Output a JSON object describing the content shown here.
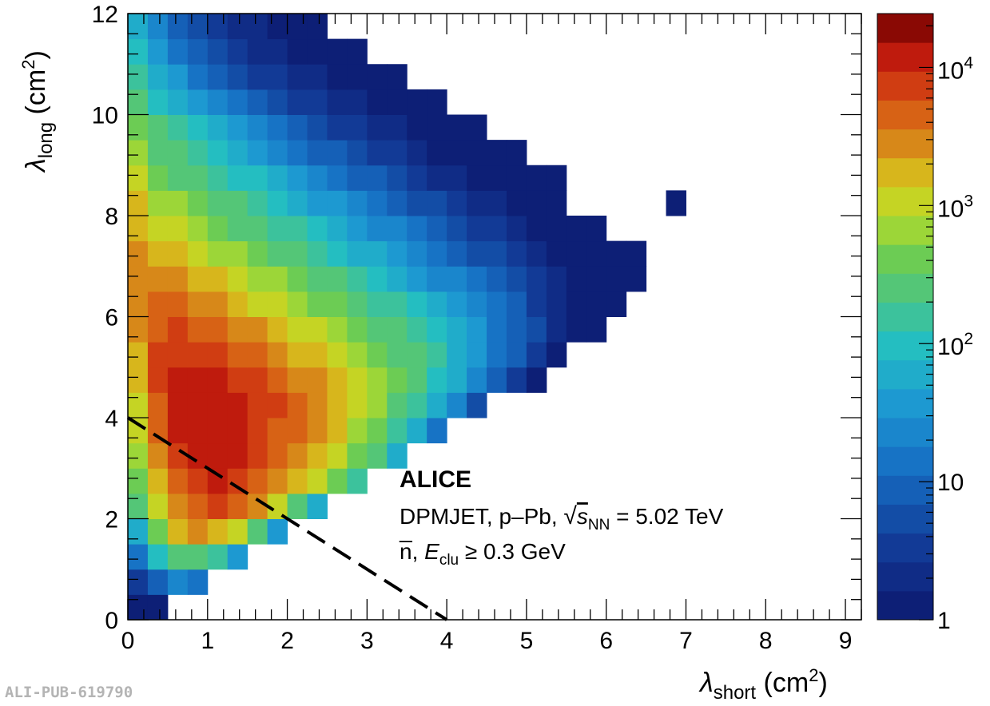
{
  "chart_data": {
    "type": "heatmap",
    "xlabel": "λ",
    "xlabel_sub": "short",
    "xlabel_unit_open": " (cm",
    "xlabel_unit_close": ")",
    "ylabel": "λ",
    "ylabel_sub": "long",
    "ylabel_unit_open": " (cm",
    "ylabel_unit_close": ")",
    "unit_power": "2",
    "xlim": [
      0,
      9.2
    ],
    "ylim": [
      0,
      12
    ],
    "x_ticks": [
      "0",
      "1",
      "2",
      "3",
      "4",
      "5",
      "6",
      "7",
      "8",
      "9"
    ],
    "y_ticks": [
      "0",
      "2",
      "4",
      "6",
      "8",
      "10",
      "12"
    ],
    "z_scale": "log",
    "z_range_log10": [
      0,
      4.39
    ],
    "z_ticks": [
      {
        "label": "1",
        "log10": 0
      },
      {
        "label": "10",
        "log10": 1
      },
      {
        "label": "10",
        "exp": "2",
        "log10": 2
      },
      {
        "label": "10",
        "exp": "3",
        "log10": 3
      },
      {
        "label": "10",
        "exp": "4",
        "log10": 4
      }
    ],
    "bin_width_x": 0.25,
    "bin_width_y": 0.5,
    "value_note": "log10(counts) per bin, rows from y=0 upward, columns from x=0",
    "log10_counts": [
      [
        0,
        0
      ],
      [
        0.5,
        1.0,
        1.3,
        1.2
      ],
      [
        1.2,
        2.0,
        2.5,
        2.5,
        2.1,
        1.5
      ],
      [
        1.8,
        2.6,
        3.2,
        3.4,
        3.3,
        3.0,
        2.5,
        1.6
      ],
      [
        2.3,
        3.0,
        3.5,
        3.7,
        3.8,
        3.7,
        3.4,
        3.0,
        2.5,
        1.8
      ],
      [
        2.7,
        3.3,
        3.7,
        3.9,
        4.0,
        3.9,
        3.7,
        3.5,
        3.3,
        3.0,
        2.6,
        2.1
      ],
      [
        2.9,
        3.5,
        3.9,
        4.0,
        4.1,
        4.0,
        3.8,
        3.6,
        3.5,
        3.3,
        3.0,
        2.7,
        2.3,
        1.8
      ],
      [
        3.0,
        3.6,
        4.0,
        4.1,
        4.1,
        4.0,
        3.9,
        3.7,
        3.6,
        3.4,
        3.2,
        2.9,
        2.6,
        2.2,
        1.7,
        1.2
      ],
      [
        3.1,
        3.7,
        4.0,
        4.1,
        4.1,
        4.0,
        3.9,
        3.8,
        3.6,
        3.5,
        3.3,
        3.1,
        2.8,
        2.5,
        2.2,
        1.8,
        1.3,
        0.8
      ],
      [
        3.2,
        3.8,
        4.0,
        4.0,
        4.0,
        3.9,
        3.8,
        3.7,
        3.5,
        3.4,
        3.2,
        3.0,
        2.8,
        2.6,
        2.3,
        2.0,
        1.7,
        1.3,
        0.9,
        0.5,
        0.2
      ],
      [
        3.3,
        3.8,
        3.9,
        3.9,
        3.8,
        3.7,
        3.6,
        3.5,
        3.3,
        3.2,
        3.0,
        2.9,
        2.7,
        2.5,
        2.3,
        2.1,
        1.8,
        1.5,
        1.2,
        0.9,
        0.5,
        0.2
      ],
      [
        3.4,
        3.7,
        3.8,
        3.7,
        3.6,
        3.5,
        3.4,
        3.2,
        3.1,
        3.0,
        2.8,
        2.6,
        2.5,
        2.3,
        2.1,
        1.9,
        1.7,
        1.5,
        1.2,
        1.0,
        0.7,
        0.4,
        0.1,
        0
      ],
      [
        3.5,
        3.6,
        3.6,
        3.5,
        3.4,
        3.3,
        3.1,
        3.0,
        2.9,
        2.7,
        2.6,
        2.4,
        2.2,
        2.1,
        1.9,
        1.7,
        1.5,
        1.3,
        1.1,
        0.9,
        0.6,
        0.4,
        0.2,
        0,
        0
      ],
      [
        3.5,
        3.4,
        3.4,
        3.3,
        3.2,
        3.0,
        2.9,
        2.8,
        2.6,
        2.5,
        2.3,
        2.1,
        2.0,
        1.8,
        1.6,
        1.4,
        1.3,
        1.1,
        0.9,
        0.7,
        0.5,
        0.3,
        0.1,
        0,
        0,
        0
      ],
      [
        3.4,
        3.3,
        3.2,
        3.1,
        2.9,
        2.8,
        2.6,
        2.5,
        2.3,
        2.2,
        2.0,
        1.8,
        1.7,
        1.5,
        1.3,
        1.2,
        1.0,
        0.8,
        0.7,
        0.5,
        0.3,
        0.1,
        0,
        0,
        0,
        0
      ],
      [
        3.3,
        3.1,
        3.0,
        2.8,
        2.7,
        2.5,
        2.4,
        2.2,
        2.1,
        1.9,
        1.7,
        1.6,
        1.4,
        1.3,
        1.1,
        0.9,
        0.8,
        0.6,
        0.5,
        0.3,
        0.2,
        0,
        0,
        0
      ],
      [
        3.2,
        2.9,
        2.8,
        2.6,
        2.4,
        2.3,
        2.1,
        2.0,
        1.8,
        1.6,
        1.5,
        1.3,
        1.2,
        1.0,
        0.8,
        0.7,
        0.5,
        0.4,
        0.3,
        0.1,
        0,
        0,
        null,
        null,
        null,
        null,
        null,
        0
      ],
      [
        3.0,
        2.7,
        2.5,
        2.3,
        2.2,
        2.0,
        1.9,
        1.7,
        1.5,
        1.3,
        1.2,
        1.0,
        0.9,
        0.7,
        0.6,
        0.4,
        0.3,
        0.2,
        0.1,
        0,
        0,
        0
      ],
      [
        2.8,
        2.5,
        2.3,
        2.1,
        1.9,
        1.7,
        1.6,
        1.4,
        1.2,
        1.0,
        0.9,
        0.7,
        0.6,
        0.5,
        0.3,
        0.2,
        0.1,
        0,
        0,
        0
      ],
      [
        2.6,
        2.3,
        2.1,
        1.9,
        1.7,
        1.5,
        1.3,
        1.1,
        0.9,
        0.8,
        0.6,
        0.5,
        0.4,
        0.3,
        0.1,
        0,
        0,
        0
      ],
      [
        2.4,
        2.0,
        1.8,
        1.5,
        1.3,
        1.1,
        0.9,
        0.8,
        0.6,
        0.5,
        0.4,
        0.3,
        0.2,
        0,
        0,
        0
      ],
      [
        2.2,
        1.8,
        1.5,
        1.2,
        1.0,
        0.8,
        0.6,
        0.5,
        0.4,
        0.3,
        0.2,
        0.1,
        0,
        0
      ],
      [
        2.0,
        1.5,
        1.2,
        1.0,
        0.8,
        0.6,
        0.4,
        0.3,
        0.2,
        0.1,
        0,
        0
      ],
      [
        1.8,
        1.3,
        1.0,
        0.8,
        0.6,
        0.4,
        0.3,
        0.2,
        0,
        0
      ]
    ],
    "cut_line": {
      "x": [
        0,
        4
      ],
      "y": [
        4,
        0
      ],
      "style": "dashed"
    },
    "annotations": {
      "experiment": "ALICE",
      "line1_pre": "DPMJET, p–Pb, ",
      "line1_s": "s",
      "line1_sub": "NN",
      "line1_post": " = 5.02 TeV",
      "line2_pre": "n̅, ",
      "line2_e": "E",
      "line2_sub": "clu",
      "line2_post": " ≥ 0.3 GeV"
    }
  },
  "watermark": "ALI-PUB-619790"
}
